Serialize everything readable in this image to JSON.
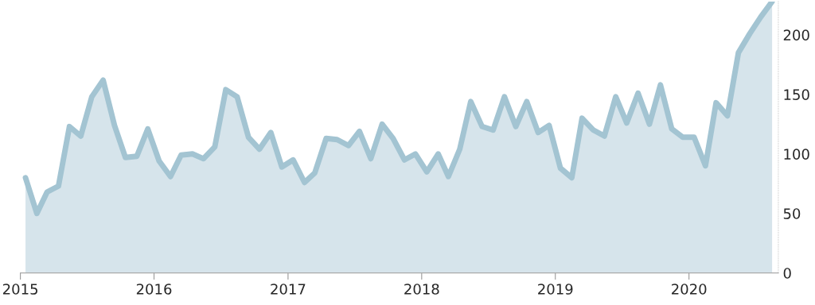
{
  "chart_data": {
    "type": "area",
    "x": [
      "2015-01-15",
      "2015-02-15",
      "2015-03-15",
      "2015-04-15",
      "2015-05-15",
      "2015-06-15",
      "2015-07-15",
      "2015-08-15",
      "2015-09-15",
      "2015-10-15",
      "2015-11-15",
      "2015-12-15",
      "2016-01-15",
      "2016-02-15",
      "2016-03-15",
      "2016-04-15",
      "2016-05-15",
      "2016-06-15",
      "2016-07-15",
      "2016-08-15",
      "2016-09-15",
      "2016-10-15",
      "2016-11-15",
      "2016-12-15",
      "2017-01-15",
      "2017-02-15",
      "2017-03-15",
      "2017-04-15",
      "2017-05-15",
      "2017-06-15",
      "2017-07-15",
      "2017-08-15",
      "2017-09-15",
      "2017-10-15",
      "2017-11-15",
      "2017-12-15",
      "2018-01-15",
      "2018-02-15",
      "2018-03-15",
      "2018-04-15",
      "2018-05-15",
      "2018-06-15",
      "2018-07-15",
      "2018-08-15",
      "2018-09-15",
      "2018-10-15",
      "2018-11-15",
      "2018-12-15",
      "2019-01-15",
      "2019-02-15",
      "2019-03-15",
      "2019-04-15",
      "2019-05-15",
      "2019-06-15",
      "2019-07-15",
      "2019-08-15",
      "2019-09-15",
      "2019-10-15",
      "2019-11-15",
      "2019-12-15",
      "2020-01-15",
      "2020-02-15",
      "2020-03-15",
      "2020-04-15",
      "2020-05-15",
      "2020-06-15",
      "2020-07-15",
      "2020-08-15"
    ],
    "series": [
      {
        "color": "#a3c4d2",
        "values": [
          80,
          50,
          68,
          73,
          123,
          115,
          148,
          162,
          124,
          97,
          98,
          121,
          94,
          81,
          99,
          100,
          96,
          106,
          154,
          148,
          114,
          104,
          118,
          89,
          95,
          76,
          84,
          113,
          112,
          107,
          119,
          96,
          125,
          113,
          95,
          100,
          85,
          100,
          81,
          104,
          144,
          123,
          120,
          148,
          123,
          144,
          118,
          124,
          88,
          80,
          130,
          120,
          115,
          148,
          126,
          151,
          125,
          158,
          121,
          114,
          114,
          90,
          143,
          132,
          185,
          201,
          215,
          228
        ]
      }
    ],
    "xlim": [
      "2015-01-01",
      "2020-09-01"
    ],
    "xticks": [
      {
        "value": "2015-01-01",
        "label": "2015"
      },
      {
        "value": "2016-01-01",
        "label": "2016"
      },
      {
        "value": "2017-01-01",
        "label": "2017"
      },
      {
        "value": "2018-01-01",
        "label": "2018"
      },
      {
        "value": "2019-01-01",
        "label": "2019"
      },
      {
        "value": "2020-01-01",
        "label": "2020"
      }
    ],
    "ylim": [
      0,
      228
    ],
    "yticks": [
      0,
      50,
      100,
      150,
      200
    ],
    "grid": false,
    "legend": false
  }
}
